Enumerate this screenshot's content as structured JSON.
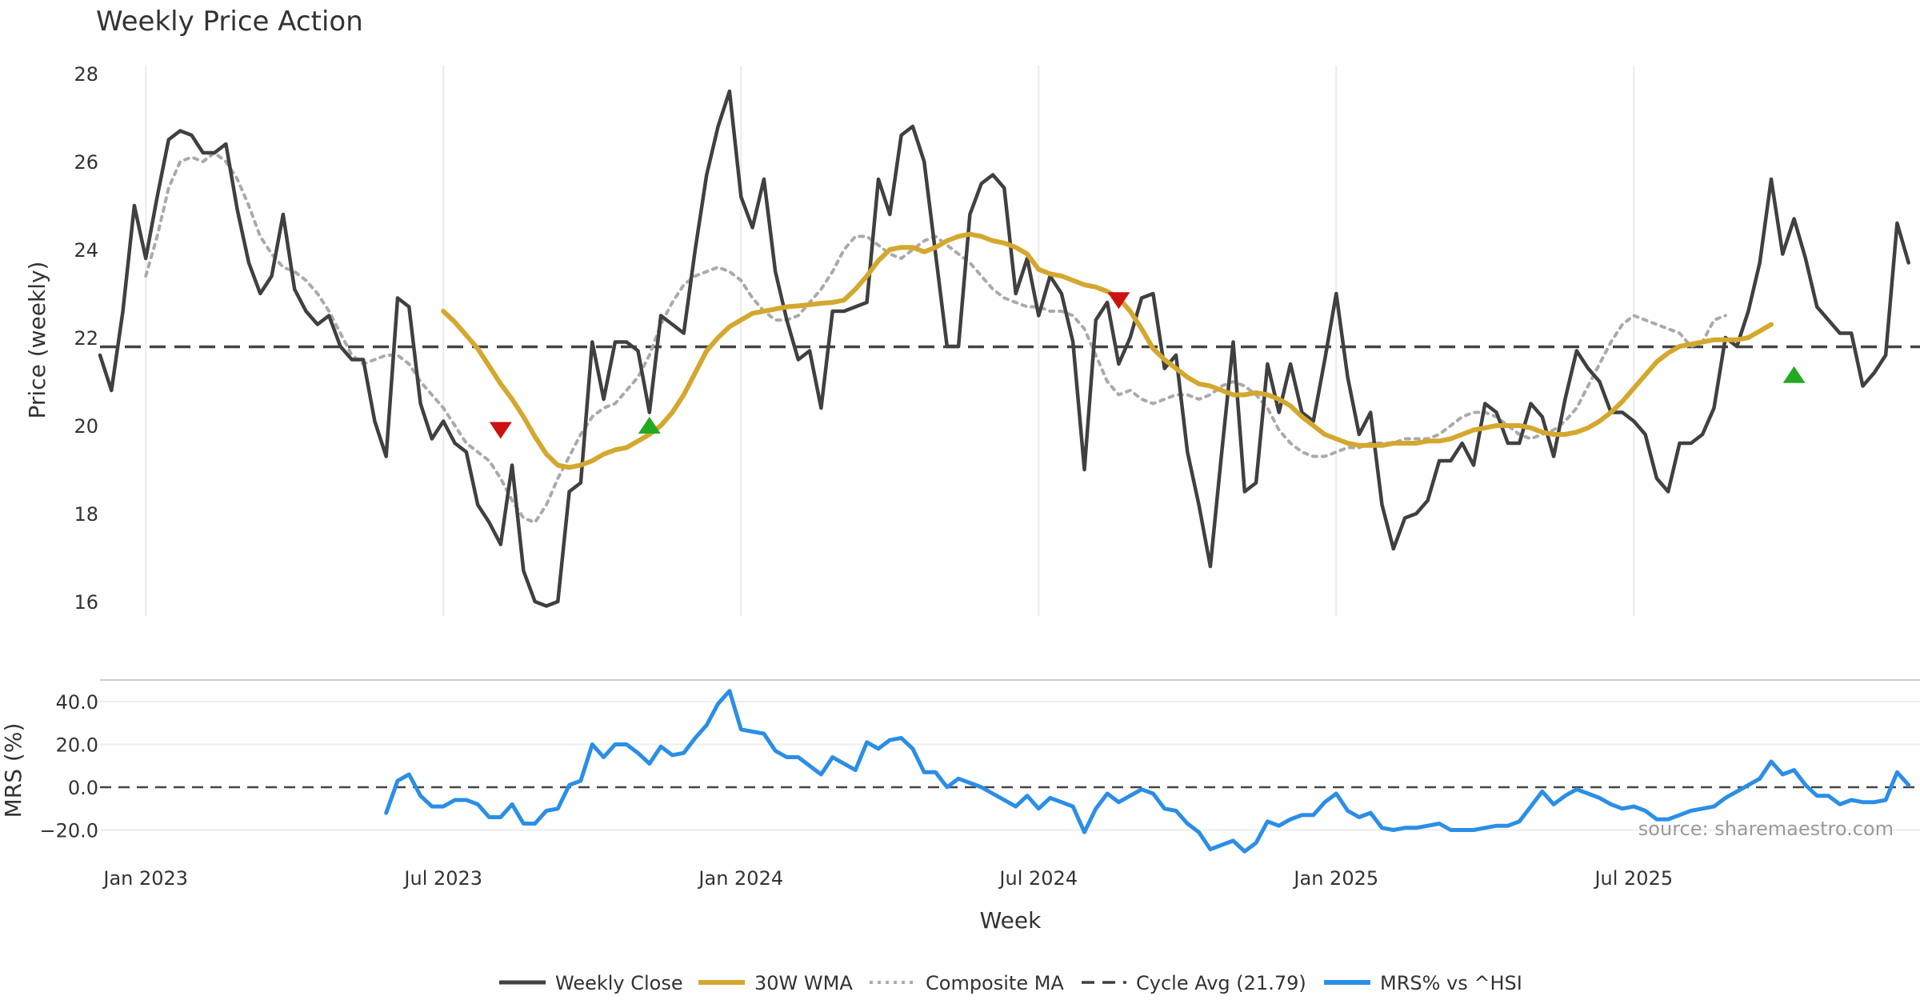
{
  "chart_data": {
    "type": "line",
    "title": "Weekly Price Action",
    "xlabel": "Week",
    "x_ticks": [
      "Jan 2023",
      "Jul 2023",
      "Jan 2024",
      "Jul 2024",
      "Jan 2025",
      "Jul 2025"
    ],
    "top_panel": {
      "ylabel": "Price (weekly)",
      "ylim": [
        15.3,
        28.3
      ],
      "yticks": [
        16,
        18,
        20,
        22,
        24,
        26,
        28
      ],
      "cycle_avg": 21.79,
      "series": [
        {
          "name": "Weekly Close",
          "color": "#404040",
          "start_week": 0,
          "values": [
            21.6,
            20.8,
            22.6,
            25.0,
            23.8,
            25.2,
            26.5,
            26.7,
            26.6,
            26.2,
            26.2,
            26.4,
            24.9,
            23.7,
            23.0,
            23.4,
            24.8,
            23.1,
            22.6,
            22.3,
            22.5,
            21.8,
            21.5,
            21.5,
            20.1,
            19.3,
            22.9,
            22.7,
            20.5,
            19.7,
            20.1,
            19.6,
            19.4,
            18.2,
            17.8,
            17.3,
            19.1,
            16.7,
            16.0,
            15.9,
            16.0,
            18.5,
            18.7,
            21.9,
            20.6,
            21.9,
            21.9,
            21.7,
            20.3,
            22.5,
            22.3,
            22.1,
            24.0,
            25.7,
            26.8,
            27.6,
            25.2,
            24.5,
            25.6,
            23.5,
            22.4,
            21.5,
            21.7,
            20.4,
            22.6,
            22.6,
            22.7,
            22.8,
            25.6,
            24.8,
            26.6,
            26.8,
            26.0,
            23.9,
            21.8,
            21.8,
            24.8,
            25.5,
            25.7,
            25.4,
            23.0,
            23.8,
            22.5,
            23.4,
            23.0,
            21.9,
            19.0,
            22.4,
            22.8,
            21.4,
            22.0,
            22.9,
            23.0,
            21.3,
            21.6,
            19.4,
            18.2,
            16.8,
            19.4,
            21.9,
            18.5,
            18.7,
            21.4,
            20.3,
            21.4,
            20.3,
            20.1,
            21.5,
            23.0,
            21.1,
            19.8,
            20.3,
            18.2,
            17.2,
            17.9,
            18.0,
            18.3,
            19.2,
            19.2,
            19.6,
            19.1,
            20.5,
            20.3,
            19.6,
            19.6,
            20.5,
            20.2,
            19.3,
            20.6,
            21.7,
            21.3,
            21.0,
            20.3,
            20.3,
            20.1,
            19.8,
            18.8,
            18.5,
            19.6,
            19.6,
            19.8,
            20.4,
            22.0,
            21.8,
            22.6,
            23.7,
            25.6,
            23.9,
            24.7,
            23.8,
            22.7,
            22.4,
            22.1,
            22.1,
            20.9,
            21.2,
            21.6,
            24.6,
            23.7
          ]
        },
        {
          "name": "30W WMA",
          "color": "#d4a82e",
          "start_week": 30,
          "values": [
            22.6,
            22.35,
            22.05,
            21.75,
            21.35,
            20.95,
            20.6,
            20.2,
            19.75,
            19.35,
            19.1,
            19.05,
            19.1,
            19.2,
            19.35,
            19.45,
            19.5,
            19.65,
            19.8,
            20.0,
            20.3,
            20.7,
            21.2,
            21.7,
            22.0,
            22.25,
            22.4,
            22.55,
            22.6,
            22.65,
            22.7,
            22.72,
            22.75,
            22.78,
            22.8,
            22.85,
            23.1,
            23.4,
            23.75,
            24.0,
            24.05,
            24.05,
            23.95,
            24.05,
            24.2,
            24.3,
            24.35,
            24.3,
            24.2,
            24.15,
            24.05,
            23.9,
            23.55,
            23.45,
            23.4,
            23.3,
            23.2,
            23.15,
            23.05,
            22.9,
            22.6,
            22.2,
            21.75,
            21.5,
            21.3,
            21.1,
            20.95,
            20.9,
            20.8,
            20.7,
            20.7,
            20.75,
            20.7,
            20.6,
            20.45,
            20.2,
            20.0,
            19.8,
            19.7,
            19.6,
            19.55,
            19.55,
            19.55,
            19.6,
            19.6,
            19.6,
            19.65,
            19.65,
            19.7,
            19.8,
            19.9,
            19.95,
            20.0,
            20.0,
            20.0,
            19.95,
            19.85,
            19.8,
            19.8,
            19.85,
            19.95,
            20.1,
            20.3,
            20.55,
            20.85,
            21.15,
            21.45,
            21.65,
            21.8,
            21.85,
            21.9,
            21.95,
            21.95,
            21.95,
            22.0,
            22.15,
            22.3
          ]
        },
        {
          "name": "Composite MA",
          "color": "#aaaaaa",
          "start_week": 4,
          "values": [
            23.4,
            24.3,
            25.4,
            26.0,
            26.1,
            26.0,
            26.2,
            26.0,
            25.6,
            25.0,
            24.3,
            23.9,
            23.6,
            23.5,
            23.3,
            23.0,
            22.6,
            22.1,
            21.6,
            21.4,
            21.5,
            21.6,
            21.6,
            21.4,
            21.0,
            20.7,
            20.4,
            20.0,
            19.6,
            19.4,
            19.2,
            18.8,
            18.3,
            17.9,
            17.8,
            18.2,
            18.8,
            19.3,
            19.8,
            20.2,
            20.4,
            20.5,
            20.8,
            21.1,
            21.6,
            22.3,
            22.8,
            23.2,
            23.4,
            23.5,
            23.6,
            23.5,
            23.3,
            22.9,
            22.6,
            22.4,
            22.4,
            22.5,
            22.8,
            23.1,
            23.5,
            24.0,
            24.3,
            24.3,
            24.1,
            23.9,
            23.8,
            24.0,
            24.2,
            24.3,
            24.1,
            23.9,
            23.7,
            23.4,
            23.1,
            22.9,
            22.8,
            22.7,
            22.7,
            22.6,
            22.6,
            22.5,
            22.2,
            21.6,
            21.0,
            20.7,
            20.8,
            20.6,
            20.5,
            20.6,
            20.7,
            20.7,
            20.6,
            20.7,
            20.9,
            21.0,
            20.9,
            20.7,
            20.4,
            19.9,
            19.6,
            19.4,
            19.3,
            19.3,
            19.4,
            19.5,
            19.5,
            19.6,
            19.6,
            19.6,
            19.7,
            19.7,
            19.7,
            19.8,
            20.0,
            20.2,
            20.3,
            20.3,
            20.2,
            20.0,
            19.8,
            19.7,
            19.8,
            19.9,
            20.1,
            20.4,
            20.9,
            21.4,
            21.9,
            22.3,
            22.5,
            22.4,
            22.3,
            22.2,
            22.1,
            21.8,
            21.9,
            22.4,
            22.5
          ]
        }
      ],
      "markers": [
        {
          "type": "sell",
          "week": 35,
          "value": 19.9,
          "color": "#cc1111"
        },
        {
          "type": "buy",
          "week": 48,
          "value": 20.0,
          "color": "#22aa22"
        },
        {
          "type": "sell",
          "week": 89,
          "value": 22.85,
          "color": "#cc1111"
        },
        {
          "type": "buy",
          "week": 148,
          "value": 21.15,
          "color": "#22aa22"
        }
      ]
    },
    "bottom_panel": {
      "ylabel": "MRS (%)",
      "ylim": [
        -29,
        50
      ],
      "yticks": [
        -20.0,
        0.0,
        20.0,
        40.0
      ],
      "ytick_labels": [
        "−20.0",
        "0.0",
        "20.0",
        "40.0"
      ],
      "series": [
        {
          "name": "MRS% vs ^HSI",
          "color": "#2b8ee6",
          "start_week": 25,
          "values": [
            -12,
            3,
            6,
            -4,
            -9,
            -9,
            -6,
            -6,
            -8,
            -14,
            -14,
            -8,
            -17,
            -17,
            -11,
            -10,
            1,
            3,
            20,
            14,
            20,
            20,
            16,
            11,
            19,
            15,
            16,
            23,
            29,
            39,
            45,
            27,
            26,
            25,
            17,
            14,
            14,
            10,
            6,
            14,
            11,
            8,
            21,
            18,
            22,
            23,
            18,
            7,
            7,
            0,
            4,
            2,
            0,
            -3,
            -6,
            -9,
            -4,
            -10,
            -5,
            -7,
            -9,
            -21,
            -10,
            -3,
            -7,
            -4,
            -1,
            -3,
            -10,
            -11,
            -17,
            -21,
            -29,
            -27,
            -25,
            -30,
            -26,
            -16,
            -18,
            -15,
            -13,
            -13,
            -7,
            -3,
            -11,
            -14,
            -12,
            -19,
            -20,
            -19,
            -19,
            -18,
            -17,
            -20,
            -20,
            -20,
            -19,
            -18,
            -18,
            -16,
            -9,
            -2,
            -8,
            -4,
            -1,
            -3,
            -5,
            -8,
            -10,
            -9,
            -11,
            -15,
            -15,
            -13,
            -11,
            -10,
            -9,
            -5,
            -2,
            1,
            4,
            12,
            6,
            8,
            1,
            -4,
            -4,
            -8,
            -6,
            -7,
            -7,
            -6,
            7,
            1
          ]
        }
      ]
    },
    "legend_position": "bottom-center",
    "legend": [
      {
        "label": "Weekly Close",
        "style": "solid",
        "color": "#404040"
      },
      {
        "label": "30W WMA",
        "style": "solid",
        "color": "#d4a82e"
      },
      {
        "label": "Composite MA",
        "style": "dotted",
        "color": "#aaaaaa"
      },
      {
        "label": "Cycle Avg (21.79)",
        "style": "dashed",
        "color": "#404040"
      },
      {
        "label": "MRS% vs ^HSI",
        "style": "solid",
        "color": "#2b8ee6"
      }
    ],
    "source_note": "source: sharemaestro.com"
  }
}
